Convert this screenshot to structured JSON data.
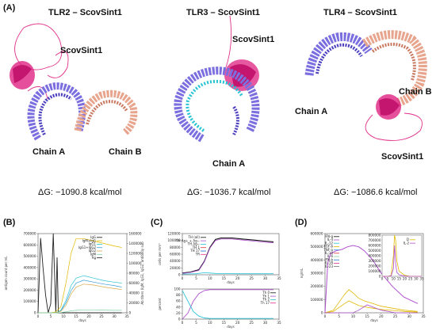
{
  "panels": {
    "A": "(A)",
    "B": "(B)",
    "C": "(C)",
    "D": "(D)"
  },
  "structures": [
    {
      "title": "TLR2 – ScovSint1",
      "ligand": "ScovSint1",
      "chain_a": "Chain A",
      "chain_b": "Chain B",
      "dg": "ΔG: −1090.8 kcal/mol"
    },
    {
      "title": "TLR3 – ScovSint1",
      "ligand": "ScovSint1",
      "chain_a": "Chain A",
      "dg": "ΔG: −1036.7 kcal/mol"
    },
    {
      "title": "TLR4 – ScovSint1",
      "ligand": "ScovSint1",
      "chain_a": "Chain A",
      "chain_b": "Chain B",
      "dg": "ΔG: −1086.6 kcal/mol"
    }
  ],
  "colors": {
    "chain_a": "#7b6fe0",
    "chain_b": "#e8a58e",
    "ligand": "#e0308a",
    "cyan": "#27c4d4",
    "black": "#111111",
    "gold": "#e0b800",
    "purple": "#b04fd0",
    "grey": "#9aa0a8"
  },
  "chart_data": [
    {
      "panel": "B",
      "type": "line",
      "xlabel": "days",
      "ylabel": "antigen count per mL",
      "y2label": "Ab titers (IgM, IgG1, IgG2, antibody sub",
      "x_ticks": [
        "0",
        "5",
        "10",
        "15",
        "20",
        "25",
        "30",
        "35"
      ],
      "y_ticks": [
        "0",
        "100000",
        "200000",
        "300000",
        "400000",
        "500000",
        "600000",
        "700000"
      ],
      "y2_ticks": [
        "0",
        "20000",
        "40000",
        "60000",
        "80000",
        "100000",
        "120000",
        "140000",
        "160000"
      ],
      "legend": [
        "IgG",
        "IgM+IgG",
        "IgG1",
        "IgG1+IgG2",
        "IgG2",
        "IgM",
        "Ag"
      ],
      "series_colors": [
        "#111111",
        "#e0b800",
        "#27c4d4",
        "#3a9fd9",
        "#d9a94a",
        "#7fd1a4",
        "#222222"
      ],
      "series": [
        {
          "axis": "y",
          "x": [
            0,
            1,
            2,
            3,
            4,
            5,
            6,
            7,
            7.5,
            8,
            10,
            12,
            15,
            20,
            25,
            30,
            33
          ],
          "values": [
            0,
            660000,
            390000,
            150000,
            0,
            80000,
            700000,
            0,
            490000,
            0,
            0,
            0,
            0,
            0,
            0,
            0,
            0
          ]
        },
        {
          "axis": "y2",
          "x": [
            0,
            5,
            7,
            9,
            11,
            13,
            15,
            18,
            22,
            26,
            30,
            33
          ],
          "values": [
            0,
            0,
            2000,
            12000,
            60000,
            120000,
            150000,
            150000,
            145000,
            140000,
            135000,
            132000
          ]
        },
        {
          "axis": "y2",
          "x": [
            0,
            7,
            9,
            11,
            13,
            15,
            18,
            22,
            26,
            30,
            33
          ],
          "values": [
            0,
            0,
            5000,
            25000,
            55000,
            70000,
            75000,
            70000,
            65000,
            62000,
            60000
          ]
        },
        {
          "axis": "y2",
          "x": [
            0,
            7,
            9,
            11,
            13,
            15,
            18,
            22,
            26,
            30,
            33
          ],
          "values": [
            0,
            0,
            4000,
            20000,
            45000,
            60000,
            66000,
            62000,
            58000,
            55000,
            52000
          ]
        },
        {
          "axis": "y2",
          "x": [
            0,
            7,
            9,
            11,
            13,
            15,
            18,
            22,
            26,
            30,
            33
          ],
          "values": [
            0,
            0,
            3000,
            15000,
            38000,
            52000,
            58000,
            56000,
            52000,
            49000,
            47000
          ]
        },
        {
          "axis": "y2",
          "x": [
            0,
            7,
            9,
            11,
            13,
            15,
            18,
            22,
            26,
            30,
            33
          ],
          "values": [
            0,
            0,
            500,
            2000,
            4000,
            5000,
            6000,
            6000,
            5500,
            5000,
            5000
          ]
        }
      ]
    },
    {
      "panel": "C-top",
      "type": "line",
      "xlabel": "days",
      "ylabel": "cells per mm³",
      "x_ticks": [
        "0",
        "5",
        "10",
        "15",
        "20",
        "25",
        "30",
        "35"
      ],
      "y_ticks": [
        "0",
        "20000",
        "40000",
        "60000",
        "80000",
        "100000",
        "120000"
      ],
      "legend": [
        "TH (all)",
        "TH Ag+ + Ag−",
        "TH Ag−",
        "TH 1",
        "TH 17",
        "TR"
      ],
      "series": [
        {
          "x": [
            0,
            3,
            6,
            8,
            10,
            12,
            14,
            18,
            22,
            26,
            30,
            33
          ],
          "values": [
            5000,
            8000,
            15000,
            40000,
            80000,
            103000,
            107000,
            107000,
            104000,
            101000,
            98000,
            96000
          ]
        },
        {
          "x": [
            0,
            3,
            6,
            8,
            10,
            12,
            14,
            18,
            22,
            26,
            30,
            33
          ],
          "values": [
            4000,
            7000,
            13000,
            38000,
            78000,
            100000,
            104000,
            104000,
            101000,
            98000,
            95000,
            93000
          ]
        },
        {
          "x": [
            0,
            5,
            8,
            10,
            12,
            15,
            20,
            25,
            30,
            33
          ],
          "values": [
            2000,
            3000,
            6000,
            5000,
            4000,
            3500,
            3000,
            3000,
            3000,
            3000
          ]
        }
      ]
    },
    {
      "panel": "C-bottom",
      "type": "line",
      "xlabel": "days",
      "ylabel": "percent",
      "x_ticks": [
        "0",
        "5",
        "10",
        "15",
        "20",
        "25",
        "30",
        "35"
      ],
      "y_ticks": [
        "0",
        "20",
        "40",
        "60",
        "80",
        "100"
      ],
      "legend": [
        "Th 0",
        "Th 1",
        "Th 2",
        "Th 17"
      ],
      "series": [
        {
          "x": [
            0,
            2,
            4,
            6,
            8,
            10,
            15,
            20,
            25,
            30,
            33
          ],
          "values": [
            0,
            20,
            60,
            85,
            95,
            98,
            98,
            98,
            98,
            98,
            98
          ]
        },
        {
          "x": [
            0,
            2,
            4,
            6,
            8,
            10,
            15,
            20,
            25,
            30,
            33
          ],
          "values": [
            95,
            60,
            25,
            10,
            4,
            2,
            2,
            2,
            2,
            2,
            2
          ]
        }
      ]
    },
    {
      "panel": "D",
      "type": "line",
      "xlabel": "days",
      "ylabel": "ng/mL",
      "x_ticks": [
        "0",
        "5",
        "10",
        "15",
        "20",
        "25",
        "30",
        "35"
      ],
      "y_ticks": [
        "0",
        "100000",
        "200000",
        "300000",
        "400000",
        "500000",
        "600000"
      ],
      "inset_y_ticks": [
        "0",
        "100000",
        "200000",
        "300000",
        "400000",
        "500000",
        "600000",
        "700000",
        "800000"
      ],
      "legend": [
        "IFN-g",
        "IL-4",
        "IL-12",
        "TGF-b",
        "TNF-a",
        "IL-10",
        "IL-6",
        "IFN-b",
        "IL-18",
        "IL-23"
      ],
      "inset_legend": [
        "D",
        "IL-2"
      ],
      "series": [
        {
          "x": [
            0,
            1,
            2,
            4,
            6,
            8,
            10,
            12,
            14,
            17,
            20,
            24,
            28,
            32,
            33
          ],
          "values": [
            0,
            380000,
            450000,
            470000,
            480000,
            500000,
            510000,
            500000,
            470000,
            400000,
            300000,
            200000,
            120000,
            80000,
            70000
          ]
        },
        {
          "x": [
            0,
            3,
            5,
            7,
            8.5,
            10,
            12,
            14,
            17,
            20,
            24,
            28,
            33
          ],
          "values": [
            0,
            20000,
            80000,
            140000,
            175000,
            150000,
            110000,
            90000,
            70000,
            50000,
            35000,
            20000,
            10000
          ]
        },
        {
          "x": [
            0,
            3,
            5,
            7,
            8.5,
            10,
            12,
            14,
            17,
            20,
            24,
            28,
            33
          ],
          "values": [
            0,
            10000,
            40000,
            70000,
            90000,
            75000,
            55000,
            45000,
            35000,
            25000,
            18000,
            10000,
            5000
          ]
        },
        {
          "x": [
            0,
            5,
            8,
            10,
            12,
            15,
            20,
            25,
            30,
            33
          ],
          "values": [
            0,
            0,
            0,
            0,
            20000,
            60000,
            20000,
            0,
            0,
            0
          ]
        }
      ],
      "inset_series": [
        {
          "x": [
            0,
            5,
            8,
            10,
            11,
            12,
            13,
            15,
            20,
            25,
            30,
            35
          ],
          "values": [
            0,
            0,
            20000,
            400000,
            800000,
            700000,
            300000,
            100000,
            20000,
            0,
            0,
            0
          ]
        },
        {
          "x": [
            0,
            5,
            8,
            10,
            11,
            12,
            13,
            15,
            20,
            25,
            30,
            35
          ],
          "values": [
            0,
            0,
            10000,
            150000,
            600000,
            250000,
            80000,
            30000,
            5000,
            0,
            0,
            0
          ]
        }
      ]
    }
  ]
}
